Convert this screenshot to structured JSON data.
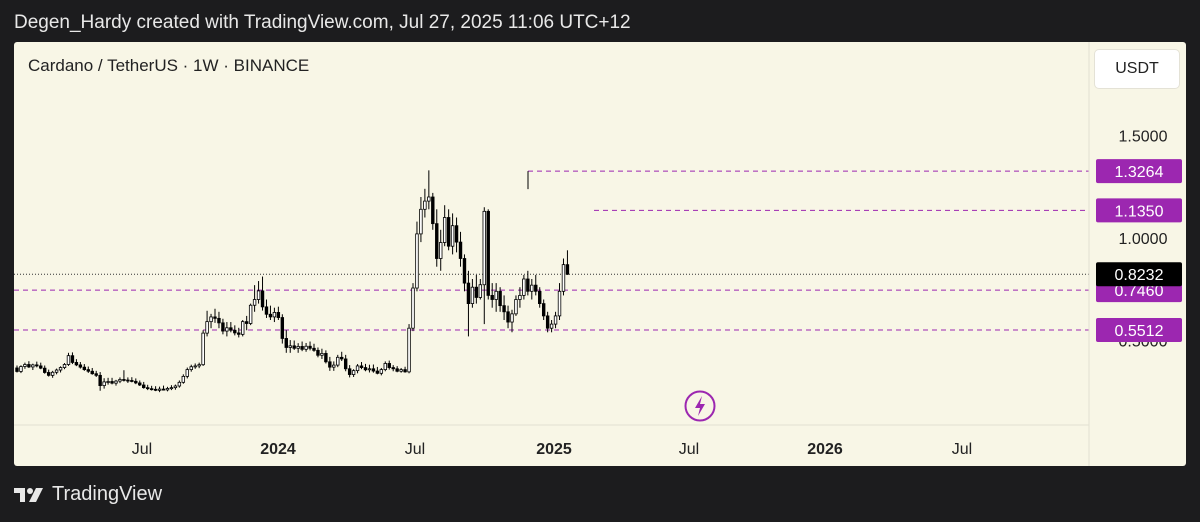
{
  "header": {
    "attribution": "Degen_Hardy created with TradingView.com, Jul 27, 2025 11:06 UTC+12"
  },
  "footer": {
    "brand": "TradingView"
  },
  "toolbar": {
    "currency_label": "USDT"
  },
  "icons": {
    "logo": "tradingview-logo-icon",
    "flash": "lightning-icon"
  },
  "chart_data": {
    "type": "candlestick",
    "title": "Cardano / TetherUS · 1W · BINANCE",
    "ylim": [
      0.22,
      1.78
    ],
    "x_tick_labels": [
      "Jul",
      "2024",
      "Jul",
      "2025",
      "Jul",
      "2026",
      "Jul"
    ],
    "y_tick_labels": [
      "1.5000",
      "1.0000",
      "0.5000"
    ],
    "y_tick_values": [
      1.5,
      1.0,
      0.5
    ],
    "current_price": "0.8232",
    "current_price_value": 0.8232,
    "levels": [
      {
        "label": "1.3264",
        "value": 1.3264,
        "color": "#9c27b0",
        "style": "dashed"
      },
      {
        "label": "1.1350",
        "value": 1.135,
        "color": "#9c27b0",
        "style": "dashed"
      },
      {
        "label": "0.7460",
        "value": 0.746,
        "color": "#9c27b0",
        "style": "dashed"
      },
      {
        "label": "0.5512",
        "value": 0.5512,
        "color": "#9c27b0",
        "style": "dashed"
      }
    ],
    "colors": {
      "up": "#ffffff",
      "down": "#000000",
      "outline": "#000000",
      "level": "#9c27b0",
      "price_tag": "#000000",
      "background": "#f8f6e6"
    },
    "candles_ohlc": [
      [
        0.366,
        0.378,
        0.344,
        0.349
      ],
      [
        0.349,
        0.379,
        0.341,
        0.373
      ],
      [
        0.373,
        0.392,
        0.362,
        0.383
      ],
      [
        0.383,
        0.399,
        0.366,
        0.371
      ],
      [
        0.371,
        0.387,
        0.356,
        0.381
      ],
      [
        0.381,
        0.397,
        0.369,
        0.376
      ],
      [
        0.376,
        0.392,
        0.36,
        0.365
      ],
      [
        0.365,
        0.378,
        0.338,
        0.344
      ],
      [
        0.344,
        0.358,
        0.324,
        0.33
      ],
      [
        0.33,
        0.352,
        0.318,
        0.345
      ],
      [
        0.345,
        0.363,
        0.335,
        0.356
      ],
      [
        0.356,
        0.374,
        0.344,
        0.368
      ],
      [
        0.368,
        0.39,
        0.36,
        0.383
      ],
      [
        0.383,
        0.44,
        0.376,
        0.426
      ],
      [
        0.426,
        0.442,
        0.385,
        0.393
      ],
      [
        0.393,
        0.409,
        0.375,
        0.381
      ],
      [
        0.381,
        0.395,
        0.363,
        0.37
      ],
      [
        0.37,
        0.385,
        0.352,
        0.358
      ],
      [
        0.358,
        0.373,
        0.342,
        0.35
      ],
      [
        0.35,
        0.366,
        0.333,
        0.338
      ],
      [
        0.338,
        0.352,
        0.322,
        0.33
      ],
      [
        0.33,
        0.346,
        0.255,
        0.28
      ],
      [
        0.28,
        0.316,
        0.265,
        0.298
      ],
      [
        0.298,
        0.318,
        0.285,
        0.3
      ],
      [
        0.3,
        0.318,
        0.286,
        0.292
      ],
      [
        0.292,
        0.308,
        0.28,
        0.302
      ],
      [
        0.302,
        0.32,
        0.292,
        0.31
      ],
      [
        0.31,
        0.355,
        0.3,
        0.307
      ],
      [
        0.307,
        0.32,
        0.293,
        0.305
      ],
      [
        0.305,
        0.321,
        0.296,
        0.301
      ],
      [
        0.301,
        0.315,
        0.287,
        0.293
      ],
      [
        0.293,
        0.305,
        0.278,
        0.283
      ],
      [
        0.283,
        0.298,
        0.265,
        0.27
      ],
      [
        0.27,
        0.284,
        0.258,
        0.265
      ],
      [
        0.265,
        0.279,
        0.256,
        0.262
      ],
      [
        0.262,
        0.277,
        0.253,
        0.257
      ],
      [
        0.257,
        0.275,
        0.248,
        0.263
      ],
      [
        0.263,
        0.28,
        0.256,
        0.259
      ],
      [
        0.259,
        0.274,
        0.252,
        0.266
      ],
      [
        0.266,
        0.282,
        0.258,
        0.27
      ],
      [
        0.27,
        0.285,
        0.26,
        0.278
      ],
      [
        0.278,
        0.305,
        0.27,
        0.296
      ],
      [
        0.296,
        0.335,
        0.289,
        0.325
      ],
      [
        0.325,
        0.368,
        0.315,
        0.358
      ],
      [
        0.358,
        0.382,
        0.348,
        0.372
      ],
      [
        0.372,
        0.388,
        0.362,
        0.376
      ],
      [
        0.376,
        0.392,
        0.365,
        0.382
      ],
      [
        0.382,
        0.55,
        0.376,
        0.536
      ],
      [
        0.536,
        0.645,
        0.52,
        0.592
      ],
      [
        0.592,
        0.63,
        0.56,
        0.615
      ],
      [
        0.615,
        0.655,
        0.586,
        0.608
      ],
      [
        0.608,
        0.64,
        0.56,
        0.586
      ],
      [
        0.586,
        0.606,
        0.53,
        0.546
      ],
      [
        0.546,
        0.59,
        0.52,
        0.562
      ],
      [
        0.562,
        0.59,
        0.54,
        0.55
      ],
      [
        0.55,
        0.574,
        0.525,
        0.537
      ],
      [
        0.537,
        0.562,
        0.515,
        0.53
      ],
      [
        0.53,
        0.6,
        0.52,
        0.592
      ],
      [
        0.592,
        0.62,
        0.55,
        0.583
      ],
      [
        0.583,
        0.68,
        0.575,
        0.672
      ],
      [
        0.672,
        0.77,
        0.64,
        0.7
      ],
      [
        0.7,
        0.79,
        0.68,
        0.742
      ],
      [
        0.742,
        0.812,
        0.646,
        0.664
      ],
      [
        0.664,
        0.7,
        0.61,
        0.628
      ],
      [
        0.628,
        0.67,
        0.6,
        0.615
      ],
      [
        0.615,
        0.66,
        0.59,
        0.637
      ],
      [
        0.637,
        0.665,
        0.6,
        0.612
      ],
      [
        0.612,
        0.628,
        0.485,
        0.51
      ],
      [
        0.51,
        0.55,
        0.44,
        0.466
      ],
      [
        0.466,
        0.502,
        0.44,
        0.474
      ],
      [
        0.474,
        0.5,
        0.454,
        0.462
      ],
      [
        0.462,
        0.487,
        0.44,
        0.471
      ],
      [
        0.471,
        0.495,
        0.448,
        0.457
      ],
      [
        0.457,
        0.488,
        0.445,
        0.472
      ],
      [
        0.472,
        0.495,
        0.452,
        0.462
      ],
      [
        0.462,
        0.484,
        0.445,
        0.452
      ],
      [
        0.452,
        0.466,
        0.418,
        0.428
      ],
      [
        0.428,
        0.46,
        0.41,
        0.437
      ],
      [
        0.437,
        0.452,
        0.388,
        0.396
      ],
      [
        0.396,
        0.42,
        0.352,
        0.37
      ],
      [
        0.37,
        0.398,
        0.352,
        0.38
      ],
      [
        0.38,
        0.43,
        0.37,
        0.418
      ],
      [
        0.418,
        0.445,
        0.4,
        0.41
      ],
      [
        0.41,
        0.43,
        0.35,
        0.362
      ],
      [
        0.362,
        0.38,
        0.32,
        0.334
      ],
      [
        0.334,
        0.36,
        0.322,
        0.353
      ],
      [
        0.353,
        0.385,
        0.34,
        0.376
      ],
      [
        0.376,
        0.395,
        0.36,
        0.368
      ],
      [
        0.368,
        0.386,
        0.35,
        0.357
      ],
      [
        0.357,
        0.382,
        0.344,
        0.362
      ],
      [
        0.362,
        0.383,
        0.343,
        0.351
      ],
      [
        0.351,
        0.371,
        0.335,
        0.34
      ],
      [
        0.34,
        0.366,
        0.33,
        0.358
      ],
      [
        0.358,
        0.398,
        0.35,
        0.388
      ],
      [
        0.388,
        0.402,
        0.358,
        0.368
      ],
      [
        0.368,
        0.38,
        0.35,
        0.362
      ],
      [
        0.362,
        0.375,
        0.345,
        0.35
      ],
      [
        0.35,
        0.366,
        0.343,
        0.358
      ],
      [
        0.358,
        0.372,
        0.343,
        0.347
      ],
      [
        0.347,
        0.58,
        0.34,
        0.56
      ],
      [
        0.56,
        0.78,
        0.546,
        0.756
      ],
      [
        0.756,
        1.08,
        0.74,
        1.02
      ],
      [
        1.02,
        1.2,
        0.98,
        1.14
      ],
      [
        1.14,
        1.24,
        1.1,
        1.18
      ],
      [
        1.18,
        1.33,
        1.14,
        1.2
      ],
      [
        1.2,
        1.22,
        1.04,
        1.07
      ],
      [
        1.07,
        1.14,
        0.86,
        0.9
      ],
      [
        0.9,
        1.04,
        0.84,
        0.978
      ],
      [
        0.978,
        1.16,
        0.96,
        1.1
      ],
      [
        1.1,
        1.14,
        0.94,
        0.96
      ],
      [
        0.96,
        1.12,
        0.92,
        1.06
      ],
      [
        1.06,
        1.1,
        0.93,
        0.98
      ],
      [
        0.98,
        1.03,
        0.86,
        0.9
      ],
      [
        0.9,
        0.92,
        0.74,
        0.78
      ],
      [
        0.78,
        0.84,
        0.52,
        0.68
      ],
      [
        0.68,
        0.8,
        0.66,
        0.76
      ],
      [
        0.76,
        0.82,
        0.68,
        0.71
      ],
      [
        0.71,
        0.8,
        0.7,
        0.772
      ],
      [
        0.772,
        1.15,
        0.58,
        1.13
      ],
      [
        1.13,
        1.14,
        0.7,
        0.72
      ],
      [
        0.72,
        0.78,
        0.66,
        0.7
      ],
      [
        0.7,
        0.78,
        0.64,
        0.74
      ],
      [
        0.74,
        0.76,
        0.64,
        0.67
      ],
      [
        0.67,
        0.72,
        0.6,
        0.64
      ],
      [
        0.64,
        0.67,
        0.56,
        0.59
      ],
      [
        0.59,
        0.65,
        0.54,
        0.63
      ],
      [
        0.63,
        0.72,
        0.62,
        0.7
      ],
      [
        0.7,
        0.76,
        0.66,
        0.72
      ],
      [
        0.72,
        0.82,
        0.7,
        0.8
      ],
      [
        0.8,
        0.84,
        0.72,
        0.74
      ],
      [
        0.74,
        0.8,
        0.7,
        0.77
      ],
      [
        0.77,
        0.82,
        0.72,
        0.74
      ],
      [
        0.74,
        0.76,
        0.66,
        0.68
      ],
      [
        0.68,
        0.7,
        0.6,
        0.62
      ],
      [
        0.62,
        0.64,
        0.54,
        0.56
      ],
      [
        0.56,
        0.6,
        0.54,
        0.58
      ],
      [
        0.58,
        0.64,
        0.56,
        0.62
      ],
      [
        0.62,
        0.78,
        0.6,
        0.74
      ],
      [
        0.74,
        0.9,
        0.72,
        0.87
      ],
      [
        0.87,
        0.94,
        0.82,
        0.8232
      ]
    ]
  }
}
